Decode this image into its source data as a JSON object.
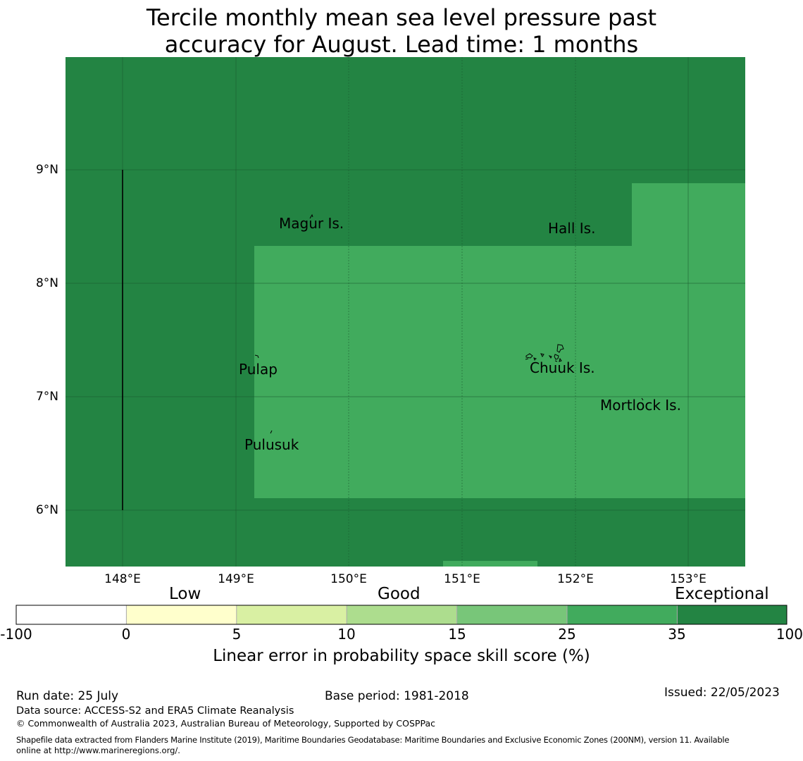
{
  "title": {
    "line1": "Tercile monthly mean sea level pressure past",
    "line2": "accuracy for August. Lead time: 1 months"
  },
  "map": {
    "lat_ticks": [
      "9°N",
      "8°N",
      "7°N",
      "6°N"
    ],
    "lon_ticks": [
      "148°E",
      "149°E",
      "150°E",
      "151°E",
      "152°E",
      "153°E"
    ],
    "extent": {
      "lon_min": 147.5,
      "lon_max": 153.5,
      "lat_min": 5.5,
      "lat_max": 10.0
    },
    "colors": {
      "exceptional": "#238443",
      "high": "#41ab5d"
    },
    "places": [
      {
        "name": "Magur Is.",
        "lon": 149.7,
        "lat": 8.5
      },
      {
        "name": "Hall Is.",
        "lon": 151.98,
        "lat": 8.47
      },
      {
        "name": "Pulap",
        "lon": 149.2,
        "lat": 7.23
      },
      {
        "name": "Chuuk Is.",
        "lon": 151.85,
        "lat": 7.24
      },
      {
        "name": "Mortlock Is.",
        "lon": 152.6,
        "lat": 6.91
      },
      {
        "name": "Pulusuk",
        "lon": 149.33,
        "lat": 6.58
      }
    ]
  },
  "legend": {
    "categories": [
      "Low",
      "Good",
      "Exceptional"
    ],
    "ticks": [
      "-100",
      "0",
      "5",
      "10",
      "15",
      "25",
      "35",
      "100"
    ],
    "colors": [
      "#ffffff",
      "#ffffcc",
      "#d9f0a3",
      "#addd8e",
      "#78c679",
      "#41ab5d",
      "#238443"
    ],
    "label": "Linear error in probability space skill score (%)"
  },
  "footer": {
    "run_date": "Run date: 25 July",
    "base_period": "Base period: 1981-2018",
    "issued": "Issued: 22/05/2023",
    "data_source": "Data source: ACCESS-S2 and ERA5 Climate Reanalysis",
    "copyright": "© Commonwealth of Australia 2023, Australian Bureau of Meteorology, Supported by COSPPac",
    "shapefile_line1": "Shapefile data extracted from Flanders Marine Institute (2019), Maritime Boundaries Geodatabase: Maritime Boundaries and Exclusive Economic Zones (200NM), version 11. Available",
    "shapefile_line2": "online at http://www.marineregions.org/."
  }
}
